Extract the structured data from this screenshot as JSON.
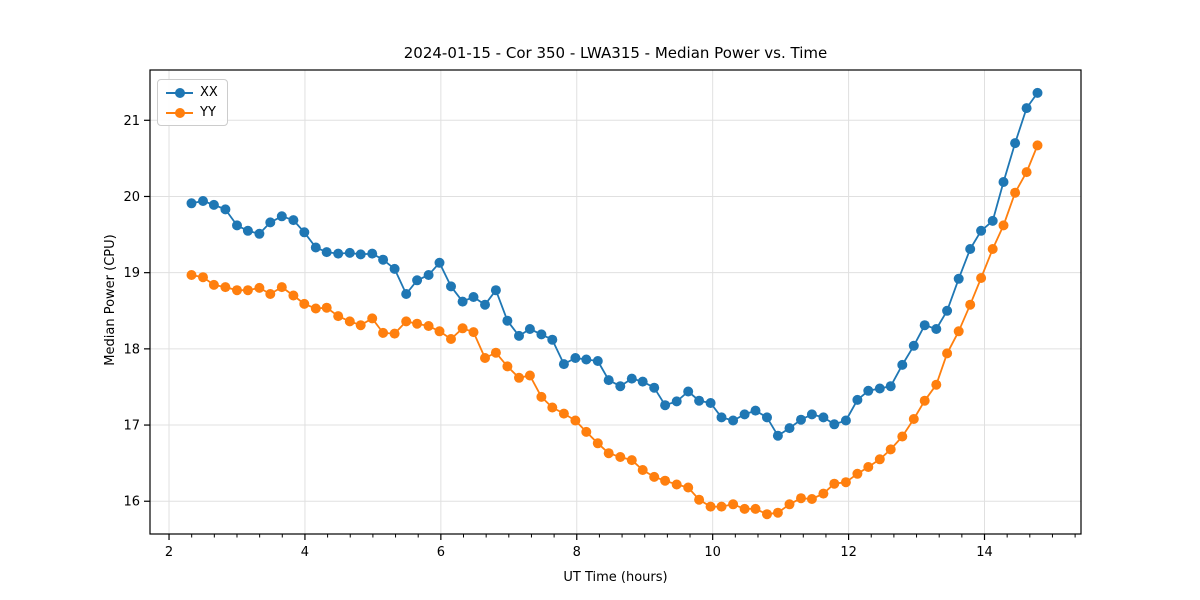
{
  "chart_data": {
    "type": "line",
    "title": "2024-01-15 - Cor 350 - LWA315 - Median Power vs. Time",
    "xlabel": "UT Time (hours)",
    "ylabel": "Median Power (CPU)",
    "xlim": [
      1.72,
      15.42
    ],
    "ylim": [
      15.57,
      21.66
    ],
    "xticks": [
      2,
      4,
      6,
      8,
      10,
      12,
      14
    ],
    "yticks": [
      16,
      17,
      18,
      19,
      20,
      21
    ],
    "minor_xtick_step": 0.3333,
    "grid": true,
    "legend_position": "upper left",
    "x": [
      2.33,
      2.5,
      2.66,
      2.83,
      3.0,
      3.16,
      3.33,
      3.49,
      3.66,
      3.83,
      3.99,
      4.16,
      4.32,
      4.49,
      4.66,
      4.82,
      4.99,
      5.15,
      5.32,
      5.49,
      5.65,
      5.82,
      5.98,
      6.15,
      6.32,
      6.48,
      6.65,
      6.81,
      6.98,
      7.15,
      7.31,
      7.48,
      7.64,
      7.81,
      7.98,
      8.14,
      8.31,
      8.47,
      8.64,
      8.81,
      8.97,
      9.14,
      9.3,
      9.47,
      9.64,
      9.8,
      9.97,
      10.13,
      10.3,
      10.47,
      10.63,
      10.8,
      10.96,
      11.13,
      11.3,
      11.46,
      11.63,
      11.79,
      11.96,
      12.13,
      12.29,
      12.46,
      12.62,
      12.79,
      12.96,
      13.12,
      13.29,
      13.45,
      13.62,
      13.79,
      13.95,
      14.12,
      14.28,
      14.45,
      14.62,
      14.78
    ],
    "series": [
      {
        "name": "XX",
        "color": "#1f77b4",
        "values": [
          19.91,
          19.94,
          19.89,
          19.83,
          19.62,
          19.55,
          19.51,
          19.66,
          19.74,
          19.69,
          19.53,
          19.33,
          19.27,
          19.25,
          19.26,
          19.24,
          19.25,
          19.17,
          19.05,
          18.72,
          18.9,
          18.97,
          19.13,
          18.82,
          18.62,
          18.68,
          18.58,
          18.77,
          18.37,
          18.17,
          18.26,
          18.19,
          18.12,
          17.8,
          17.88,
          17.86,
          17.84,
          17.59,
          17.51,
          17.61,
          17.57,
          17.49,
          17.26,
          17.31,
          17.44,
          17.32,
          17.29,
          17.1,
          17.06,
          17.14,
          17.19,
          17.1,
          16.86,
          16.96,
          17.07,
          17.14,
          17.1,
          17.01,
          17.06,
          17.33,
          17.45,
          17.48,
          17.51,
          17.79,
          18.04,
          18.31,
          18.26,
          18.5,
          18.92,
          19.31,
          19.55,
          19.68,
          20.19,
          20.7,
          21.16,
          21.36
        ]
      },
      {
        "name": "YY",
        "color": "#ff7f0e",
        "values": [
          18.97,
          18.94,
          18.84,
          18.81,
          18.77,
          18.77,
          18.8,
          18.72,
          18.81,
          18.7,
          18.59,
          18.53,
          18.54,
          18.43,
          18.36,
          18.31,
          18.4,
          18.21,
          18.2,
          18.36,
          18.33,
          18.3,
          18.23,
          18.13,
          18.27,
          18.22,
          17.88,
          17.95,
          17.77,
          17.62,
          17.65,
          17.37,
          17.23,
          17.15,
          17.06,
          16.91,
          16.76,
          16.63,
          16.58,
          16.54,
          16.41,
          16.32,
          16.27,
          16.22,
          16.18,
          16.02,
          15.93,
          15.93,
          15.96,
          15.9,
          15.9,
          15.83,
          15.85,
          15.96,
          16.04,
          16.03,
          16.1,
          16.23,
          16.25,
          16.36,
          16.45,
          16.55,
          16.68,
          16.85,
          17.08,
          17.32,
          17.53,
          17.94,
          18.23,
          18.58,
          18.93,
          19.31,
          19.62,
          20.05,
          20.32,
          20.67
        ]
      }
    ],
    "style": {
      "grid_color": "#e0e0e0",
      "spine_color": "#000000",
      "background": "#ffffff",
      "marker_radius": 5,
      "line_width": 1.8
    }
  }
}
